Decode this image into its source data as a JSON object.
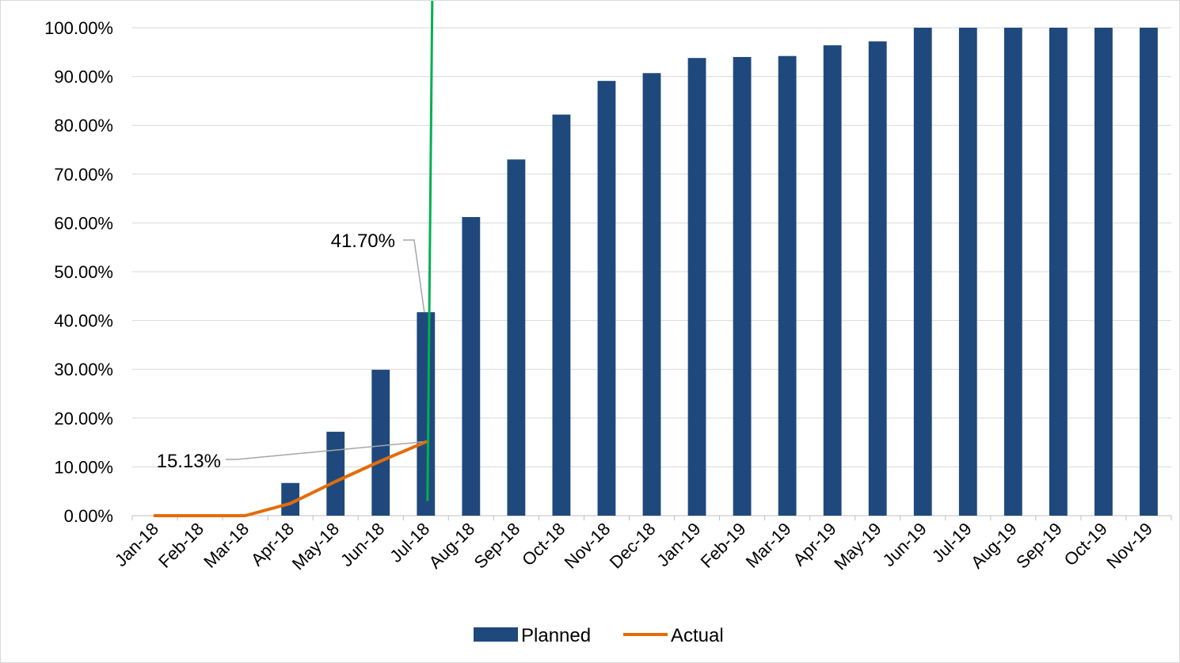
{
  "chart_data": {
    "type": "bar",
    "categories": [
      "Jan-18",
      "Feb-18",
      "Mar-18",
      "Apr-18",
      "May-18",
      "Jun-18",
      "Jul-18",
      "Aug-18",
      "Sep-18",
      "Oct-18",
      "Nov-18",
      "Dec-18",
      "Jan-19",
      "Feb-19",
      "Mar-19",
      "Apr-19",
      "May-19",
      "Jun-19",
      "Jul-19",
      "Aug-19",
      "Sep-19",
      "Oct-19",
      "Nov-19"
    ],
    "series": [
      {
        "name": "Planned",
        "type": "bar",
        "color": "#1f497d",
        "values": [
          0,
          0,
          0,
          6.7,
          17.2,
          29.9,
          41.7,
          61.2,
          73.0,
          82.2,
          89.1,
          90.7,
          93.8,
          94.0,
          94.2,
          96.4,
          97.2,
          100,
          100,
          100,
          100,
          100,
          100
        ]
      },
      {
        "name": "Actual",
        "type": "line",
        "color": "#e46c0a",
        "values": [
          0,
          0,
          0,
          2.5,
          7.0,
          11.2,
          15.13,
          null,
          null,
          null,
          null,
          null,
          null,
          null,
          null,
          null,
          null,
          null,
          null,
          null,
          null,
          null,
          null
        ]
      }
    ],
    "data_labels": [
      {
        "series": "Planned",
        "category": "Jul-18",
        "text": "41.70%"
      },
      {
        "series": "Actual",
        "category": "Jul-18",
        "text": "15.13%"
      }
    ],
    "marker_line": {
      "color": "#00b050",
      "near_category": "Jul-18"
    },
    "ylim": [
      0,
      100
    ],
    "yticks": [
      "0.00%",
      "10.00%",
      "20.00%",
      "30.00%",
      "40.00%",
      "50.00%",
      "60.00%",
      "70.00%",
      "80.00%",
      "90.00%",
      "100.00%"
    ],
    "grid": true,
    "legend": "bottom",
    "title": "",
    "xlabel": "",
    "ylabel": ""
  }
}
